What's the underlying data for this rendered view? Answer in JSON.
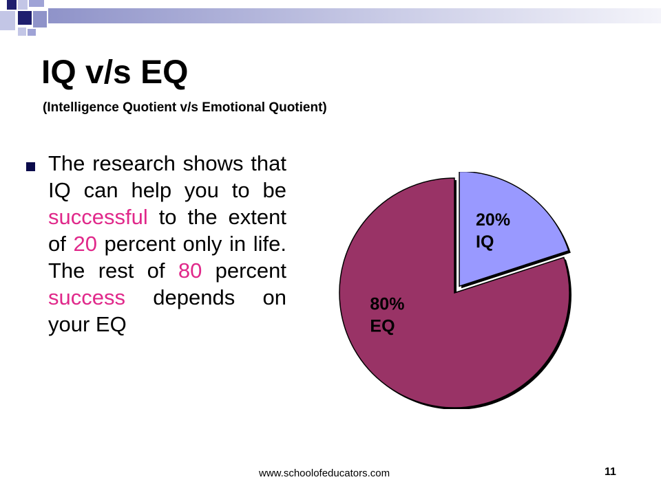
{
  "slide": {
    "title": "IQ v/s EQ",
    "subtitle": "(Intelligence Quotient v/s Emotional Quotient)",
    "paragraph": [
      {
        "text": "The research shows that IQ can help you to be ",
        "color": "#000000"
      },
      {
        "text": "successful",
        "color": "#e0288a"
      },
      {
        "text": " to the extent of ",
        "color": "#000000"
      },
      {
        "text": "20",
        "color": "#e0288a"
      },
      {
        "text": " percent only in life. The rest of ",
        "color": "#000000"
      },
      {
        "text": "80",
        "color": "#e0288a"
      },
      {
        "text": " percent ",
        "color": "#000000"
      },
      {
        "text": "success",
        "color": "#e0288a"
      },
      {
        "text": " depends on your EQ",
        "color": "#000000"
      }
    ],
    "footer_url": "www.schoolofeducators.com",
    "page_number": "11"
  },
  "chart_data": {
    "type": "pie",
    "slices": [
      {
        "label_pct": "20%",
        "label_name": "IQ",
        "value": 20,
        "color": "#9999ff",
        "exploded": true
      },
      {
        "label_pct": "80%",
        "label_name": "EQ",
        "value": 80,
        "color": "#993366",
        "exploded": false
      }
    ]
  },
  "colors": {
    "accent_navy": "#1f1f6e",
    "accent_periwinkle": "#9fa3d6",
    "highlight_pink": "#e0288a"
  }
}
